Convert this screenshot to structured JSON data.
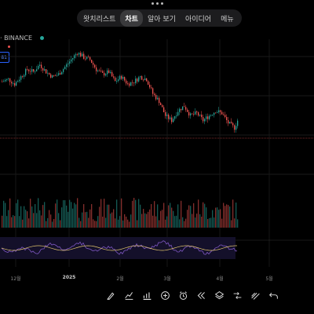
{
  "top_nav": {
    "tabs": [
      {
        "label": "왓치리스트",
        "active": false
      },
      {
        "label": "차트",
        "active": true
      },
      {
        "label": "알아 보기",
        "active": false
      },
      {
        "label": "아이디어",
        "active": false
      },
      {
        "label": "메뉴",
        "active": false
      }
    ]
  },
  "symbol_bar": {
    "exchange_label": "· BINANCE",
    "live_color": "#26a69a"
  },
  "indicator_box": {
    "value": "81"
  },
  "colors": {
    "up": "#26a69a",
    "down": "#ef5350",
    "price_line": "#ef5350",
    "rsi": "#7e57c2",
    "rsi_ma": "#e0c46c"
  },
  "x_axis": {
    "ticks": [
      "12월",
      "2025",
      "2월",
      "3월",
      "4월",
      "5월"
    ]
  },
  "chart_data": {
    "type": "candlestick",
    "candles": [],
    "x_ticks": [
      "12월",
      "2025",
      "2월",
      "3월",
      "4월",
      "5월"
    ]
  },
  "toolbar": {
    "tools": [
      {
        "name": "brush-tool-icon"
      },
      {
        "name": "chart-type-icon"
      },
      {
        "name": "indicators-icon"
      },
      {
        "name": "add-icon"
      },
      {
        "name": "alert-clock-icon"
      },
      {
        "name": "replay-icon"
      },
      {
        "name": "layers-icon"
      },
      {
        "name": "compare-icon"
      },
      {
        "name": "drawing-lines-icon"
      },
      {
        "name": "undo-icon"
      }
    ]
  }
}
